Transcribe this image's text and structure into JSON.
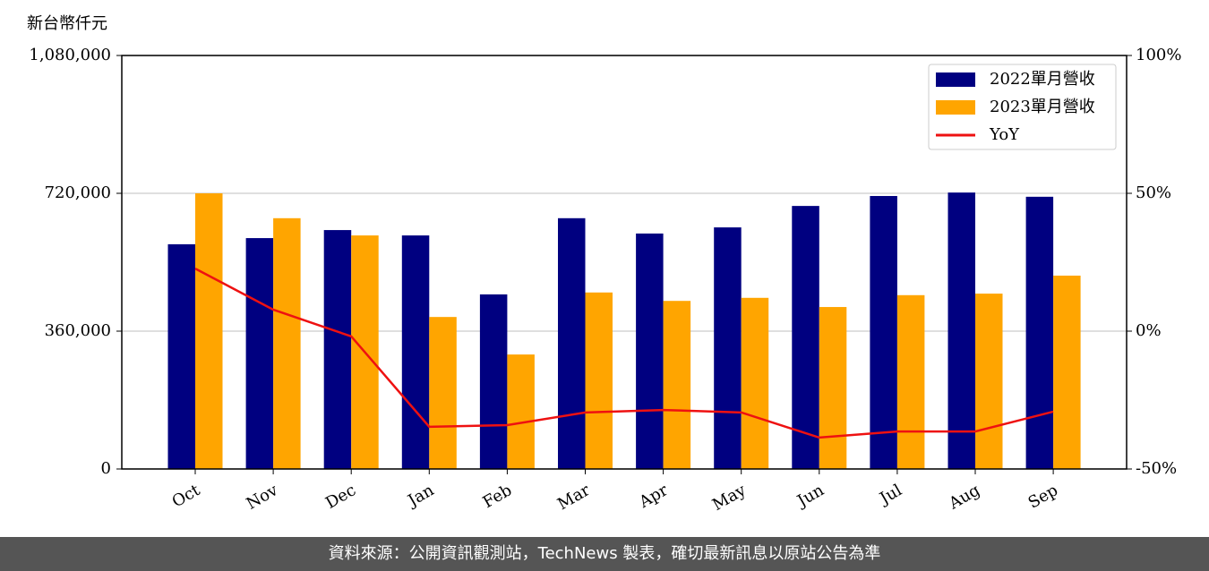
{
  "chart_data": {
    "type": "bar",
    "y_label": "新台幣仟元",
    "categories": [
      "Oct",
      "Nov",
      "Dec",
      "Jan",
      "Feb",
      "Mar",
      "Apr",
      "May",
      "Jun",
      "Jul",
      "Aug",
      "Sep"
    ],
    "series": [
      {
        "name": "2022單月營收",
        "color": "#000080",
        "values": [
          587000,
          603000,
          624000,
          610000,
          456000,
          655000,
          615000,
          631000,
          687000,
          713000,
          722000,
          711000
        ]
      },
      {
        "name": "2023單月營收",
        "color": "#ffa500",
        "values": [
          720000,
          655000,
          610000,
          397000,
          299000,
          461000,
          439000,
          447000,
          423000,
          454000,
          458000,
          505000
        ]
      },
      {
        "name": "YoY",
        "color": "#ee1111",
        "type": "line",
        "axis": "y2",
        "values": [
          22.7,
          7.8,
          -1.9,
          -34.7,
          -34.1,
          -29.5,
          -28.6,
          -29.5,
          -38.6,
          -36.4,
          -36.4,
          -29.2
        ]
      }
    ],
    "ylim": [
      0,
      1080000
    ],
    "yticks": [
      0,
      {
        "value": 360000,
        "label": "360,000"
      },
      {
        "value": 720000,
        "label": "720,000"
      },
      {
        "value": 1080000,
        "label": "1,080,000"
      }
    ],
    "y2lim": [
      -50,
      100
    ],
    "y2ticks": [
      {
        "value": -50,
        "label": "-50%"
      },
      {
        "value": 0,
        "label": "0%"
      },
      {
        "value": 50,
        "label": "50%"
      },
      {
        "value": 100,
        "label": "100%"
      }
    ],
    "grid": true,
    "legend": "upper right"
  },
  "footer": "資料來源：公開資訊觀測站，TechNews 製表，確切最新訊息以原站公告為準"
}
